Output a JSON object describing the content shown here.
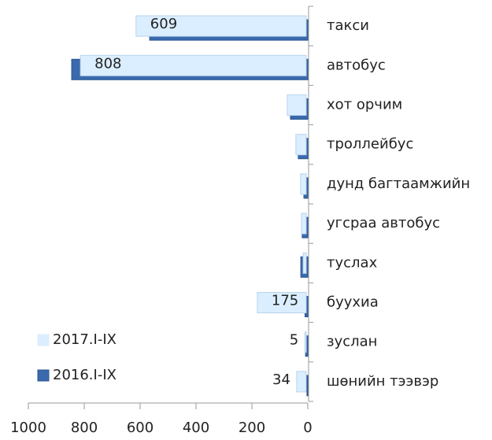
{
  "chart_data": {
    "type": "bar",
    "orientation": "horizontal",
    "reversed": true,
    "categories": [
      "такси",
      "автобус",
      "хот орчим",
      "троллейбус",
      "дунд багтаамжийн",
      "угсраа автобус",
      "туслах",
      "буухиа",
      "зуслан",
      "шөнийн тээвэр"
    ],
    "series": [
      {
        "name": "2017.I-IX",
        "color": "#dbeeff",
        "values": [
          609,
          808,
          68,
          37,
          20,
          17,
          11,
          175,
          5,
          34
        ],
        "value_labels": [
          "609",
          "808",
          null,
          null,
          null,
          null,
          null,
          "175",
          "5",
          "34"
        ]
      },
      {
        "name": "2016.I-IX",
        "color": "#3a6aad",
        "values": [
          566,
          845,
          62,
          34,
          14,
          20,
          25,
          10,
          8,
          3
        ]
      }
    ],
    "xlim": [
      0,
      1000
    ],
    "xticks": [
      1000,
      800,
      600,
      400,
      200,
      0
    ]
  }
}
